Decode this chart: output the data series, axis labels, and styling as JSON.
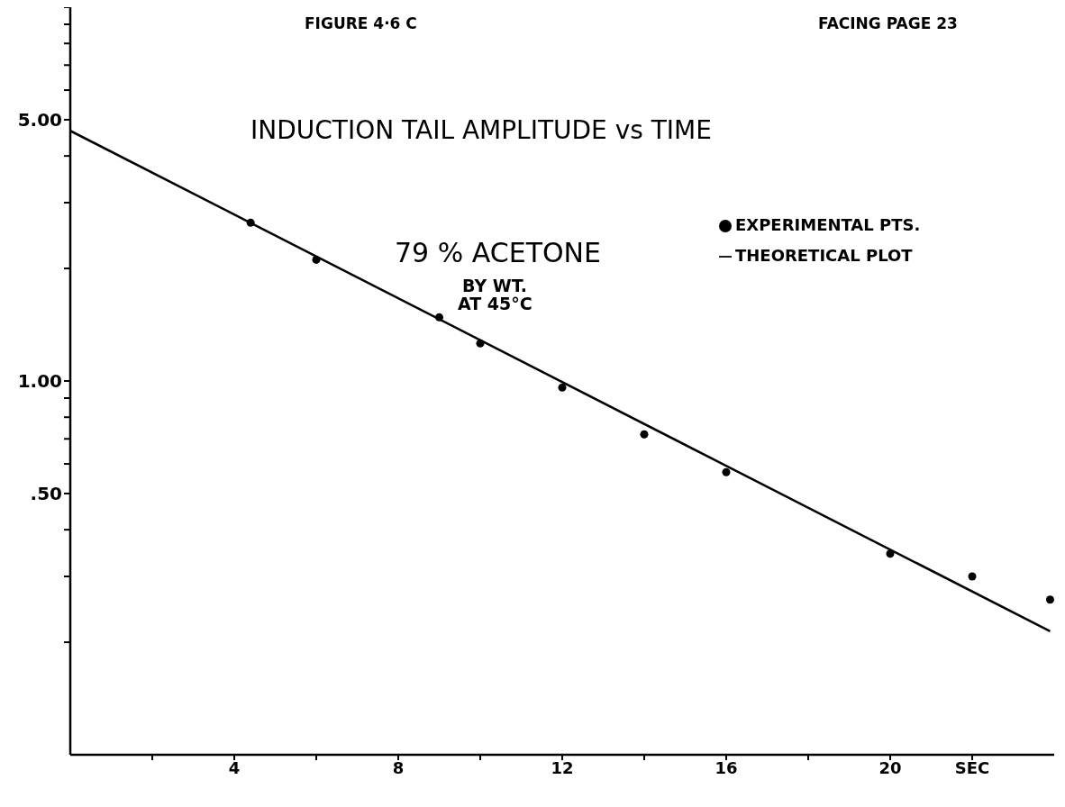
{
  "chart_data": {
    "type": "scatter",
    "title": "INDUCTION TAIL AMPLITUDE vs TIME",
    "annotations": [
      "FIGURE 4·6 C",
      "FACING PAGE 23",
      "79 % ACETONE",
      "BY WT.",
      "AT 45°C"
    ],
    "series": [
      {
        "name": "EXPERIMENTAL PTS.",
        "marker": "circle",
        "color": "#000000",
        "x": [
          4.4,
          6,
          9,
          10,
          12,
          14,
          16,
          20,
          22,
          23.9
        ],
        "values": [
          2.65,
          2.11,
          1.48,
          1.26,
          0.96,
          0.72,
          0.57,
          0.345,
          0.3,
          0.26
        ]
      },
      {
        "name": "THEORETICAL PLOT",
        "type": "line",
        "marker": "none",
        "color": "#000000",
        "x": [
          0,
          23.9
        ],
        "values": [
          4.67,
          0.214
        ]
      }
    ],
    "xlim": [
      0,
      24
    ],
    "xticks": [
      {
        "value": 2,
        "label": null
      },
      4,
      {
        "value": 6,
        "label": null
      },
      8,
      {
        "value": 10,
        "label": null
      },
      12,
      {
        "value": 14,
        "label": null
      },
      16,
      {
        "value": 18,
        "label": null
      },
      20,
      {
        "value": 22,
        "label": "SEC"
      }
    ],
    "ylim": [
      0.1,
      10
    ],
    "log": "y",
    "yticks": [
      {
        "value": 0.2,
        "label": null
      },
      {
        "value": 0.3,
        "label": null
      },
      {
        "value": 0.4,
        "label": null
      },
      {
        "value": 0.5,
        "label": ".50"
      },
      {
        "value": 0.6,
        "label": null
      },
      {
        "value": 0.7,
        "label": null
      },
      {
        "value": 0.8,
        "label": null
      },
      {
        "value": 0.9,
        "label": null
      },
      {
        "value": 1,
        "label": "1.00"
      },
      {
        "value": 2,
        "label": null
      },
      {
        "value": 3,
        "label": null
      },
      {
        "value": 4,
        "label": null
      },
      {
        "value": 5,
        "label": "5.00"
      },
      {
        "value": 6,
        "label": null
      },
      {
        "value": 7,
        "label": null
      },
      {
        "value": 8,
        "label": null
      },
      {
        "value": 9,
        "label": null
      },
      {
        "value": 10,
        "label": null
      }
    ],
    "grid": false,
    "legend": "top right",
    "line_style": "solid"
  }
}
